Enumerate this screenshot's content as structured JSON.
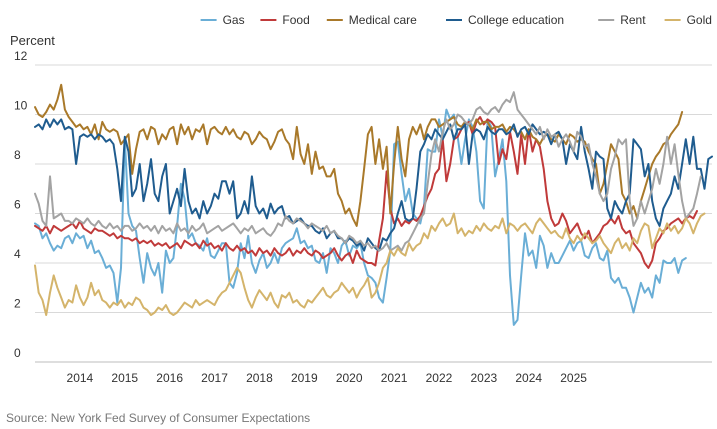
{
  "chart_data": {
    "type": "line",
    "title": "",
    "ylabel": "Percent",
    "xlabel": "",
    "ylim": [
      0,
      12
    ],
    "yticks": [
      0,
      2,
      4,
      6,
      8,
      10,
      12
    ],
    "x_start": 2013.5,
    "x_step": 0.0833333,
    "x_ticks": [
      {
        "label": "2014",
        "value": 2014.5
      },
      {
        "label": "2015",
        "value": 2015.5
      },
      {
        "label": "2016",
        "value": 2016.5
      },
      {
        "label": "2017",
        "value": 2017.5
      },
      {
        "label": "2018",
        "value": 2018.5
      },
      {
        "label": "2019",
        "value": 2019.5
      },
      {
        "label": "2020",
        "value": 2020.5
      },
      {
        "label": "2021",
        "value": 2021.5
      },
      {
        "label": "2022",
        "value": 2022.5
      },
      {
        "label": "2023",
        "value": 2023.5
      },
      {
        "label": "2024",
        "value": 2024.5
      },
      {
        "label": "2025",
        "value": 2025.5
      }
    ],
    "legend_position": "top-right",
    "series": [
      {
        "name": "Gas",
        "color": "#6aaed6",
        "values": [
          5.6,
          5.5,
          5.0,
          5.2,
          4.8,
          4.5,
          4.7,
          4.6,
          5.0,
          5.1,
          4.8,
          5.2,
          5.0,
          5.1,
          4.6,
          4.9,
          4.4,
          4.5,
          4.2,
          3.8,
          3.9,
          3.6,
          2.4,
          3.8,
          9.0,
          6.0,
          5.5,
          5.3,
          4.2,
          3.2,
          4.4,
          3.8,
          3.5,
          4.0,
          2.8,
          4.5,
          4.0,
          4.2,
          5.5,
          7.2,
          6.6,
          5.0,
          5.2,
          4.8,
          4.7,
          4.5,
          5.0,
          4.3,
          4.2,
          4.5,
          4.8,
          4.8,
          3.2,
          3.0,
          3.6,
          4.8,
          4.2,
          5.1,
          4.0,
          3.6,
          4.1,
          4.4,
          3.8,
          4.0,
          4.4,
          4.0,
          4.6,
          4.8,
          4.9,
          5.0,
          5.4,
          4.8,
          4.9,
          4.6,
          4.7,
          4.1,
          4.0,
          4.4,
          3.6,
          4.6,
          4.4,
          4.0,
          4.7,
          4.9,
          4.3,
          4.7,
          4.6,
          4.8,
          4.0,
          3.5,
          3.4,
          3.2,
          2.6,
          2.4,
          3.4,
          4.5,
          8.8,
          8.9,
          7.6,
          6.5,
          7.0,
          6.0,
          5.8,
          5.6,
          6.3,
          8.6,
          8.5,
          8.5,
          9.8,
          9.1,
          10.2,
          9.8,
          10.0,
          9.1,
          8.0,
          9.0,
          9.8,
          9.5,
          8.5,
          6.5,
          6.2,
          9.8,
          9.5,
          7.5,
          8.2,
          9.0,
          7.3,
          3.5,
          1.5,
          1.7,
          3.5,
          5.2,
          4.3,
          4.5,
          3.8,
          5.1,
          4.7,
          3.8,
          4.4,
          4.0,
          4.0,
          4.3,
          4.6,
          4.9,
          4.5,
          4.8,
          4.9,
          4.3,
          4.2,
          4.6,
          4.8,
          4.2,
          4.1,
          4.5,
          3.4,
          3.2,
          3.4,
          3.0,
          3.0,
          2.6,
          2.0,
          2.6,
          3.2,
          2.8,
          3.0,
          2.6,
          3.5,
          3.2,
          4.1,
          4.0,
          4.0,
          4.2,
          3.6,
          4.1,
          4.2
        ]
      },
      {
        "name": "Food",
        "color": "#c03a3a",
        "values": [
          5.5,
          5.4,
          5.3,
          5.5,
          5.2,
          5.5,
          5.4,
          5.3,
          5.4,
          5.5,
          5.6,
          5.4,
          5.7,
          5.4,
          5.3,
          5.2,
          5.4,
          5.3,
          5.3,
          5.2,
          5.1,
          5.2,
          5.0,
          5.1,
          5.0,
          5.0,
          4.9,
          5.0,
          4.8,
          4.9,
          4.8,
          4.9,
          4.7,
          4.8,
          4.7,
          4.8,
          4.6,
          4.7,
          4.8,
          4.6,
          4.9,
          4.8,
          4.7,
          4.8,
          4.6,
          4.9,
          4.7,
          4.8,
          4.6,
          4.7,
          4.5,
          4.8,
          4.6,
          4.5,
          4.7,
          4.5,
          4.6,
          4.4,
          4.5,
          4.3,
          4.6,
          4.4,
          4.5,
          4.3,
          4.6,
          4.4,
          4.3,
          4.4,
          4.6,
          4.3,
          4.5,
          4.4,
          4.6,
          4.4,
          4.3,
          4.5,
          4.4,
          4.2,
          4.3,
          4.4,
          4.6,
          4.3,
          4.1,
          4.3,
          4.4,
          4.0,
          4.5,
          4.2,
          4.1,
          4.0,
          4.0,
          3.9,
          4.9,
          5.8,
          7.7,
          6.2,
          5.6,
          5.8,
          5.5,
          5.7,
          5.6,
          5.8,
          5.7,
          5.9,
          6.3,
          6.7,
          7.0,
          7.6,
          7.8,
          9.0,
          7.3,
          8.0,
          9.0,
          9.1,
          9.4,
          9.6,
          9.7,
          9.2,
          9.7,
          9.9,
          9.6,
          9.8,
          9.7,
          9.5,
          8.0,
          8.6,
          8.2,
          9.3,
          8.5,
          7.6,
          9.2,
          8.0,
          9.4,
          8.5,
          9.0,
          8.7,
          7.8,
          6.5,
          5.8,
          5.5,
          5.6,
          6.0,
          5.7,
          5.2,
          5.4,
          5.6,
          5.2,
          5.0,
          5.3,
          4.8,
          5.0,
          5.2,
          5.5,
          5.6,
          5.8,
          5.6,
          5.9,
          5.4,
          5.2,
          5.3,
          4.8,
          4.6,
          4.4,
          4.0,
          3.8,
          4.1,
          4.8,
          5.0,
          5.3,
          5.4,
          5.6,
          5.7,
          5.8,
          5.6,
          5.8,
          5.9,
          5.8,
          6.1
        ]
      },
      {
        "name": "Medical care",
        "color": "#a9792a",
        "values": [
          10.3,
          10.0,
          9.9,
          10.1,
          10.4,
          10.2,
          10.6,
          11.2,
          10.2,
          9.9,
          9.7,
          9.5,
          9.6,
          9.4,
          9.5,
          9.2,
          9.6,
          9.0,
          9.7,
          9.4,
          9.3,
          9.4,
          9.3,
          8.8,
          9.0,
          9.2,
          7.6,
          8.6,
          9.3,
          9.4,
          9.0,
          9.5,
          9.4,
          8.8,
          9.2,
          9.0,
          9.4,
          9.5,
          8.8,
          9.6,
          9.2,
          9.5,
          9.0,
          9.4,
          9.3,
          9.6,
          8.8,
          9.4,
          9.5,
          9.3,
          9.2,
          9.5,
          9.2,
          9.4,
          9.1,
          9.0,
          9.3,
          9.2,
          8.8,
          9.0,
          9.3,
          9.1,
          9.0,
          8.6,
          8.9,
          9.3,
          9.4,
          9.0,
          8.8,
          8.2,
          9.5,
          8.4,
          8.0,
          8.8,
          7.6,
          8.5,
          7.8,
          7.9,
          7.5,
          7.5,
          7.8,
          6.8,
          6.5,
          6.0,
          6.2,
          5.8,
          5.5,
          6.5,
          7.8,
          9.2,
          9.5,
          8.0,
          9.0,
          7.8,
          8.7,
          6.0,
          8.0,
          9.5,
          8.2,
          7.5,
          9.0,
          9.5,
          9.2,
          9.6,
          9.0,
          9.5,
          9.8,
          9.8,
          9.5,
          9.6,
          9.7,
          9.8,
          9.9,
          9.6,
          9.5,
          9.7,
          9.6,
          9.4,
          9.8,
          9.6,
          9.7,
          9.7,
          9.4,
          9.5,
          9.5,
          9.6,
          9.3,
          9.5,
          9.4,
          9.2,
          9.3,
          9.0,
          9.4,
          9.1,
          9.0,
          8.8,
          9.1,
          9.2,
          9.0,
          8.9,
          9.2,
          9.0,
          8.8,
          9.2,
          9.1,
          8.9,
          9.0,
          8.9,
          8.5,
          8.2,
          8.0,
          6.8,
          7.2,
          8.0,
          8.8,
          8.5,
          8.2,
          6.8,
          6.5,
          6.0,
          6.3,
          5.8,
          6.5,
          7.0,
          7.5,
          8.0,
          8.3,
          8.5,
          8.8,
          8.9,
          9.2,
          9.4,
          9.6,
          10.1
        ]
      },
      {
        "name": "College education",
        "color": "#1f5c8f",
        "values": [
          9.5,
          9.6,
          9.4,
          9.8,
          9.5,
          9.8,
          9.6,
          9.8,
          9.4,
          9.5,
          9.4,
          8.0,
          9.1,
          9.2,
          9.1,
          9.2,
          9.0,
          9.2,
          9.1,
          8.9,
          9.0,
          8.8,
          7.8,
          6.5,
          9.1,
          8.5,
          6.7,
          7.0,
          8.0,
          6.5,
          7.2,
          8.2,
          6.8,
          6.5,
          7.5,
          8.0,
          6.0,
          6.5,
          7.0,
          6.3,
          7.8,
          6.5,
          6.0,
          6.2,
          5.8,
          6.5,
          6.0,
          6.3,
          6.8,
          6.6,
          7.3,
          7.3,
          6.8,
          7.3,
          5.8,
          6.0,
          6.5,
          6.0,
          7.5,
          6.3,
          6.0,
          6.2,
          5.8,
          6.4,
          6.0,
          6.2,
          6.3,
          5.8,
          5.9,
          5.6,
          5.7,
          5.8,
          5.6,
          5.5,
          5.5,
          5.3,
          5.2,
          5.4,
          5.0,
          5.2,
          5.3,
          5.0,
          5.0,
          4.8,
          5.0,
          4.9,
          4.7,
          4.8,
          4.5,
          5.0,
          4.8,
          4.6,
          4.5,
          5.0,
          4.9,
          5.2,
          5.4,
          6.0,
          6.5,
          5.8,
          5.7,
          5.8,
          7.0,
          8.5,
          8.8,
          9.2,
          9.0,
          9.4,
          9.2,
          9.0,
          9.3,
          9.6,
          9.0,
          9.4,
          9.4,
          9.6,
          8.0,
          9.2,
          9.4,
          9.3,
          9.0,
          9.5,
          9.3,
          9.2,
          9.4,
          9.4,
          9.2,
          9.3,
          9.6,
          9.1,
          9.4,
          9.5,
          9.2,
          9.6,
          9.4,
          9.2,
          9.3,
          9.2,
          8.8,
          9.2,
          9.3,
          9.0,
          8.0,
          8.8,
          8.5,
          8.2,
          9.5,
          8.5,
          7.8,
          7.0,
          8.5,
          8.3,
          8.2,
          6.2,
          5.8,
          6.5,
          6.2,
          6.0,
          6.5,
          6.8,
          9.0,
          8.8,
          8.6,
          7.5,
          8.0,
          6.5,
          5.8,
          5.5,
          6.2,
          6.5,
          6.8,
          7.5,
          7.0,
          8.0,
          9.0,
          8.0,
          9.1,
          7.8,
          7.8,
          7.0,
          8.2,
          8.3
        ]
      },
      {
        "name": "Rent",
        "color": "#a3a3a3",
        "values": [
          6.8,
          6.4,
          5.7,
          5.5,
          7.5,
          5.8,
          5.9,
          6.0,
          5.7,
          5.7,
          5.6,
          5.8,
          5.7,
          5.6,
          5.8,
          5.6,
          5.5,
          5.7,
          5.5,
          5.4,
          5.6,
          5.4,
          5.5,
          5.3,
          5.5,
          5.5,
          5.3,
          5.4,
          5.6,
          5.4,
          5.5,
          5.3,
          5.5,
          5.2,
          5.5,
          5.3,
          5.4,
          5.2,
          5.6,
          5.3,
          5.4,
          5.2,
          5.5,
          5.3,
          5.4,
          5.6,
          5.2,
          5.3,
          5.4,
          5.5,
          5.3,
          5.4,
          5.5,
          5.6,
          5.4,
          5.2,
          5.4,
          5.3,
          5.5,
          5.2,
          5.3,
          5.4,
          5.2,
          5.1,
          5.3,
          5.6,
          5.5,
          5.9,
          5.7,
          5.6,
          5.8,
          5.7,
          5.6,
          5.4,
          5.6,
          5.5,
          5.4,
          5.3,
          5.5,
          5.2,
          5.3,
          5.1,
          5.0,
          4.8,
          5.1,
          5.0,
          4.8,
          4.9,
          4.7,
          4.8,
          4.6,
          4.7,
          4.5,
          4.6,
          4.8,
          4.5,
          4.6,
          4.7,
          4.5,
          4.8,
          4.9,
          5.2,
          5.5,
          5.8,
          6.0,
          7.2,
          8.4,
          9.0,
          8.5,
          9.3,
          9.8,
          9.4,
          9.6,
          10.0,
          9.9,
          9.7,
          9.6,
          9.8,
          10.2,
          10.3,
          10.1,
          10.0,
          10.2,
          10.3,
          10.1,
          10.4,
          10.6,
          10.5,
          10.9,
          10.2,
          10.0,
          9.8,
          9.6,
          9.4,
          9.2,
          9.5,
          9.0,
          9.4,
          9.1,
          9.2,
          8.7,
          9.0,
          9.2,
          8.9,
          8.5,
          9.3,
          9.1,
          8.7,
          8.8,
          8.0,
          7.5,
          6.8,
          6.5,
          6.8,
          7.8,
          8.3,
          9.0,
          8.8,
          9.0,
          6.5,
          5.5,
          5.8,
          6.5,
          6.0,
          6.5,
          7.0,
          7.8,
          7.2,
          8.0,
          9.1,
          8.0,
          8.8,
          7.6,
          6.5,
          5.8,
          6.0,
          6.2,
          6.8,
          7.5
        ]
      },
      {
        "name": "Gold",
        "color": "#d4b46b",
        "values": [
          3.9,
          2.8,
          2.5,
          1.9,
          2.8,
          3.5,
          3.0,
          2.6,
          2.2,
          2.5,
          2.4,
          3.1,
          2.6,
          2.3,
          2.6,
          3.2,
          2.7,
          2.9,
          2.5,
          2.4,
          2.2,
          2.4,
          2.3,
          2.5,
          2.2,
          2.4,
          2.3,
          2.6,
          2.5,
          2.2,
          2.1,
          1.9,
          2.0,
          2.2,
          2.1,
          2.3,
          2.0,
          1.9,
          2.0,
          2.2,
          2.4,
          2.3,
          2.2,
          2.5,
          2.3,
          2.4,
          2.5,
          2.4,
          2.3,
          2.6,
          2.8,
          2.9,
          3.2,
          3.5,
          3.8,
          3.6,
          3.0,
          2.5,
          2.2,
          2.6,
          2.9,
          2.7,
          2.5,
          2.8,
          2.4,
          2.2,
          2.7,
          2.6,
          2.8,
          2.4,
          2.5,
          2.3,
          2.2,
          2.5,
          2.4,
          2.6,
          2.8,
          3.0,
          2.7,
          2.6,
          2.8,
          2.9,
          3.2,
          3.0,
          2.8,
          3.0,
          2.6,
          2.9,
          3.1,
          3.4,
          2.6,
          2.8,
          3.2,
          3.8,
          4.0,
          4.5,
          4.3,
          4.6,
          4.4,
          4.3,
          4.8,
          4.5,
          4.7,
          4.8,
          5.2,
          5.0,
          5.5,
          5.3,
          5.6,
          5.8,
          5.5,
          5.6,
          6.0,
          5.2,
          5.4,
          5.1,
          5.3,
          5.2,
          5.5,
          5.3,
          5.6,
          5.4,
          5.3,
          5.5,
          5.4,
          5.8,
          5.2,
          5.6,
          5.5,
          5.3,
          5.5,
          5.6,
          5.4,
          5.2,
          5.6,
          5.8,
          5.6,
          5.4,
          5.2,
          5.3,
          5.1,
          5.0,
          5.4,
          5.0,
          4.8,
          5.1,
          4.9,
          5.2,
          5.0,
          4.8,
          4.9,
          5.1,
          4.8,
          4.6,
          4.4,
          4.8,
          5.0,
          4.6,
          4.8,
          4.5,
          5.0,
          4.8,
          5.3,
          5.6,
          5.5,
          4.6,
          5.0,
          5.4,
          5.2,
          5.6,
          5.3,
          5.5,
          5.2,
          5.4,
          5.8,
          5.6,
          5.2,
          5.6,
          5.9,
          6.0
        ]
      }
    ]
  },
  "footer": {
    "source": "Source: New York Fed Survey of Consumer Expectations"
  }
}
